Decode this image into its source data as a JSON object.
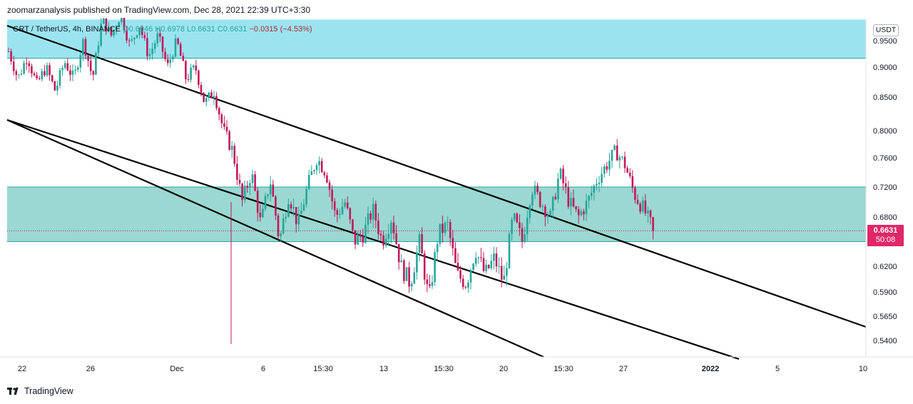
{
  "header": {
    "text": "zoomarzanalysis published on TradingView.com, Dec 28, 2021 22:39 UTC+3:30"
  },
  "legend": {
    "symbol": "GRT / TetherUS, 4h, BINANCE",
    "open": "O0.6946",
    "high": "H0.6978",
    "low": "L0.6631",
    "close": "C0.6631",
    "change": "−0.0315 (−4.53%)"
  },
  "price_axis": {
    "unit": "USDT",
    "last_price": "0.6631",
    "countdown": "50:08"
  },
  "footer": {
    "brand": "TradingView"
  },
  "colors": {
    "up": "#26a69a",
    "down": "#c2185b",
    "top_zone": "#9be4ef",
    "mid_zone": "#9bd8d1",
    "zone_border": "#26a69a",
    "channel_line": "#000000",
    "price_tag": "#e02767"
  },
  "chart_data": {
    "type": "candlestick",
    "series": [
      {
        "name": "GRT / TetherUS, 4h, BINANCE"
      }
    ],
    "y_ticks": [
      0.95,
      0.9,
      0.85,
      0.8,
      0.76,
      0.72,
      0.68,
      0.62,
      0.59,
      0.565,
      0.54
    ],
    "y_tick_labels": [
      "0.9500",
      "0.9000",
      "0.8500",
      "0.8000",
      "0.7600",
      "0.7200",
      "0.6800",
      "0.6200",
      "0.5900",
      "0.5650",
      "0.5400"
    ],
    "x_ticks": [
      "22",
      "26",
      "Dec",
      "6",
      "15:30",
      "13",
      "15:30",
      "20",
      "15:30",
      "27",
      "2022",
      "5",
      "10"
    ],
    "zones": [
      {
        "from": 0.9167,
        "to": 0.99,
        "color": "#9be4ef"
      },
      {
        "from": 0.65,
        "to": 0.72,
        "color": "#9bd8d1"
      }
    ],
    "last_price": 0.6631,
    "candle_path": [
      0.93,
      0.88,
      0.92,
      0.87,
      0.9,
      0.86,
      0.91,
      0.88,
      0.95,
      0.88,
      0.99,
      0.96,
      1.0,
      0.94,
      0.98,
      0.92,
      0.96,
      0.9,
      0.95,
      0.88,
      0.9,
      0.84,
      0.86,
      0.8,
      0.77,
      0.7,
      0.74,
      0.67,
      0.73,
      0.65,
      0.71,
      0.67,
      0.72,
      0.76,
      0.74,
      0.68,
      0.7,
      0.65,
      0.66,
      0.69,
      0.65,
      0.68,
      0.62,
      0.6,
      0.65,
      0.58,
      0.66,
      0.67,
      0.61,
      0.6,
      0.64,
      0.61,
      0.63,
      0.6,
      0.68,
      0.65,
      0.72,
      0.7,
      0.68,
      0.74,
      0.7,
      0.68,
      0.7,
      0.73,
      0.75,
      0.77,
      0.75,
      0.71,
      0.69,
      0.6631
    ]
  }
}
